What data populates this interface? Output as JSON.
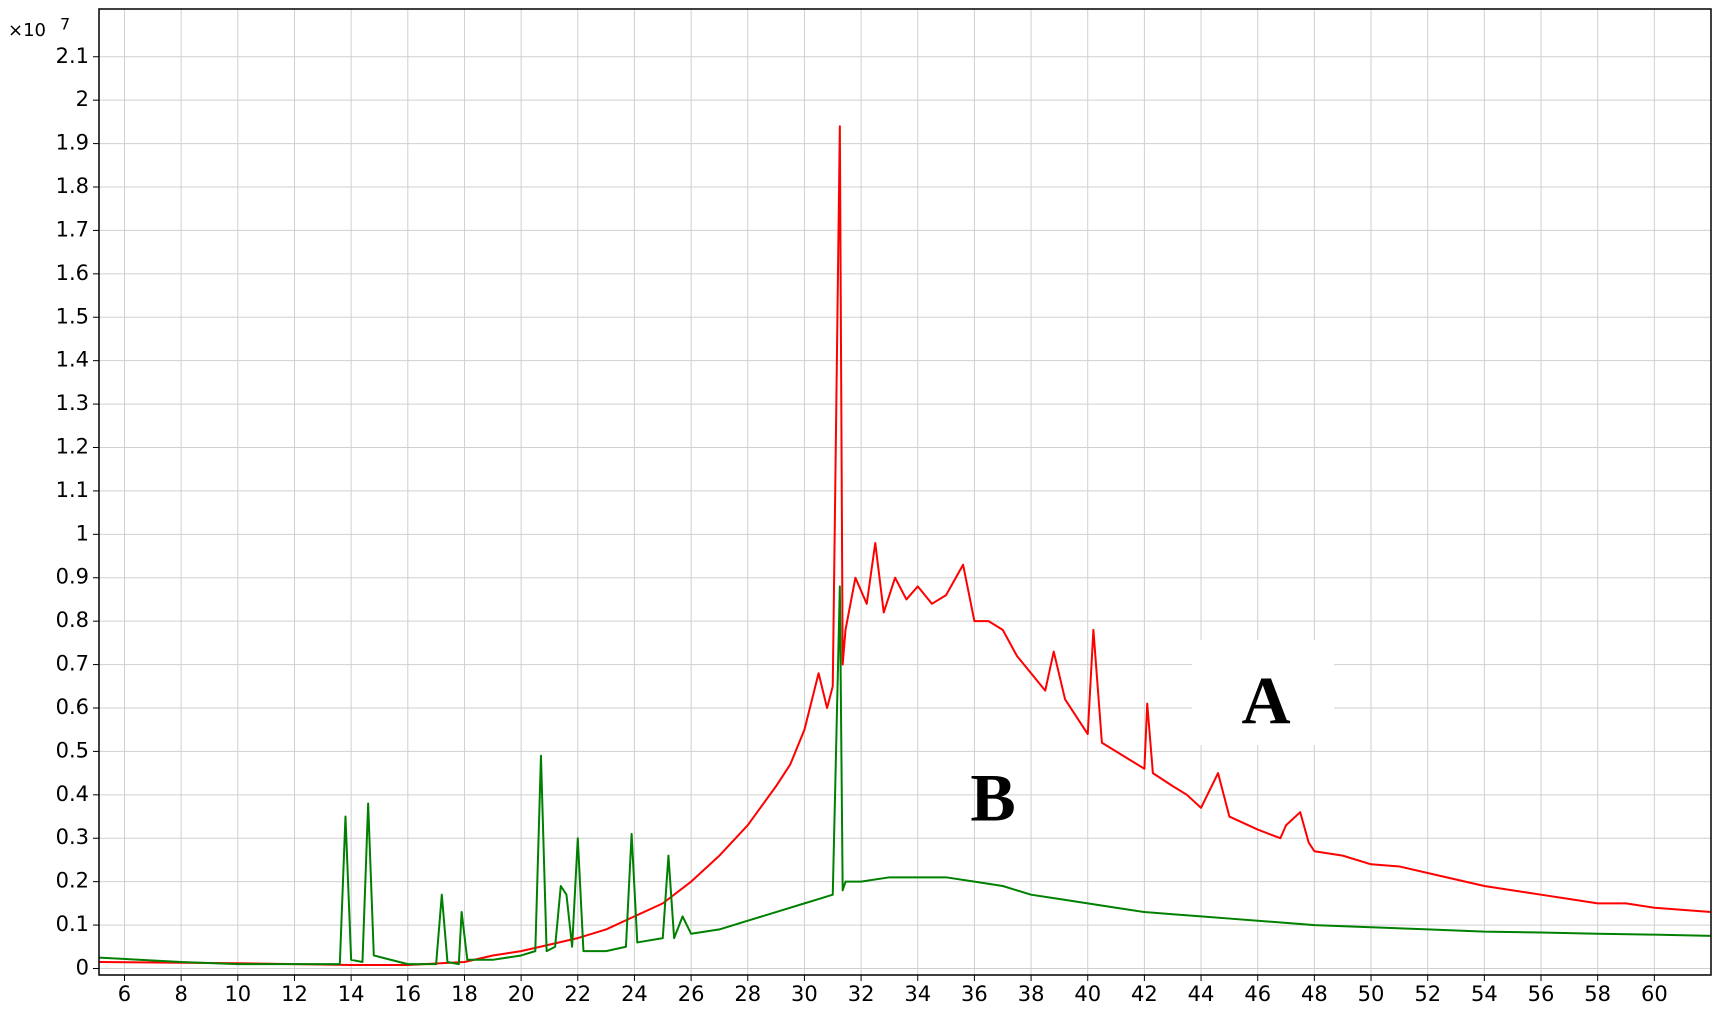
{
  "chart_data": {
    "type": "line",
    "y_multiplier": "×10",
    "y_exponent": "7",
    "xlim": [
      5.1,
      62
    ],
    "ylim": [
      -0.015,
      2.21
    ],
    "xticks": [
      6,
      8,
      10,
      12,
      14,
      16,
      18,
      20,
      22,
      24,
      26,
      28,
      30,
      32,
      34,
      36,
      38,
      40,
      42,
      44,
      46,
      48,
      50,
      52,
      54,
      56,
      58,
      60
    ],
    "yticks": [
      0,
      0.1,
      0.2,
      0.3,
      0.4,
      0.5,
      0.6,
      0.7,
      0.8,
      0.9,
      1,
      1.1,
      1.2,
      1.3,
      1.4,
      1.5,
      1.6,
      1.7,
      1.8,
      1.9,
      2,
      2.1
    ],
    "grid": true,
    "series": [
      {
        "name": "A",
        "color": "#ff0000",
        "x": [
          5.1,
          10,
          14,
          16,
          18,
          19,
          20,
          21,
          22,
          23,
          24,
          25,
          26,
          27,
          28,
          29,
          29.5,
          30,
          30.5,
          30.8,
          31,
          31.25,
          31.35,
          31.45,
          31.8,
          32.2,
          32.5,
          32.8,
          33.2,
          33.6,
          34,
          34.5,
          35,
          35.6,
          36,
          36.5,
          37,
          37.5,
          38,
          38.5,
          38.8,
          39.2,
          39.6,
          40,
          40.2,
          40.5,
          41,
          41.5,
          42,
          42.1,
          42.3,
          43,
          43.5,
          44,
          44.6,
          45,
          46,
          46.8,
          47,
          47.5,
          47.8,
          48,
          49,
          50,
          51,
          52,
          53,
          54,
          55,
          56,
          57,
          58,
          59,
          60,
          61,
          62
        ],
        "values": [
          0.015,
          0.012,
          0.008,
          0.008,
          0.015,
          0.03,
          0.04,
          0.055,
          0.07,
          0.09,
          0.12,
          0.15,
          0.2,
          0.26,
          0.33,
          0.42,
          0.47,
          0.55,
          0.68,
          0.6,
          0.65,
          1.94,
          0.7,
          0.78,
          0.9,
          0.84,
          0.98,
          0.82,
          0.9,
          0.85,
          0.88,
          0.84,
          0.86,
          0.93,
          0.8,
          0.8,
          0.78,
          0.72,
          0.68,
          0.64,
          0.73,
          0.62,
          0.58,
          0.54,
          0.78,
          0.52,
          0.5,
          0.48,
          0.46,
          0.61,
          0.45,
          0.42,
          0.4,
          0.37,
          0.45,
          0.35,
          0.32,
          0.3,
          0.33,
          0.36,
          0.29,
          0.27,
          0.26,
          0.24,
          0.235,
          0.22,
          0.205,
          0.19,
          0.18,
          0.17,
          0.16,
          0.15,
          0.15,
          0.14,
          0.135,
          0.13
        ]
      },
      {
        "name": "B",
        "color": "#008000",
        "x": [
          5.1,
          8,
          10,
          12,
          13.6,
          13.8,
          14,
          14.4,
          14.6,
          14.8,
          16,
          17,
          17.2,
          17.4,
          17.8,
          17.9,
          18.1,
          19,
          20,
          20.5,
          20.7,
          20.9,
          21.2,
          21.4,
          21.6,
          21.8,
          22,
          22.2,
          23,
          23.7,
          23.9,
          24.1,
          25,
          25.2,
          25.4,
          25.7,
          26,
          27,
          28,
          29,
          30,
          30.5,
          31,
          31.25,
          31.35,
          31.45,
          32,
          33,
          34,
          35,
          36,
          37,
          38,
          39,
          40,
          41,
          42,
          43,
          44,
          45,
          46,
          47,
          48,
          50,
          52,
          54,
          56,
          58,
          60,
          62
        ],
        "values": [
          0.025,
          0.015,
          0.01,
          0.01,
          0.01,
          0.35,
          0.02,
          0.015,
          0.38,
          0.03,
          0.01,
          0.01,
          0.17,
          0.015,
          0.01,
          0.13,
          0.02,
          0.02,
          0.03,
          0.04,
          0.49,
          0.04,
          0.05,
          0.19,
          0.17,
          0.05,
          0.3,
          0.04,
          0.04,
          0.05,
          0.31,
          0.06,
          0.07,
          0.26,
          0.07,
          0.12,
          0.08,
          0.09,
          0.11,
          0.13,
          0.15,
          0.16,
          0.17,
          0.88,
          0.18,
          0.2,
          0.2,
          0.21,
          0.21,
          0.21,
          0.2,
          0.19,
          0.17,
          0.16,
          0.15,
          0.14,
          0.13,
          0.125,
          0.12,
          0.115,
          0.11,
          0.105,
          0.1,
          0.095,
          0.09,
          0.085,
          0.083,
          0.08,
          0.078,
          0.075
        ]
      }
    ]
  }
}
